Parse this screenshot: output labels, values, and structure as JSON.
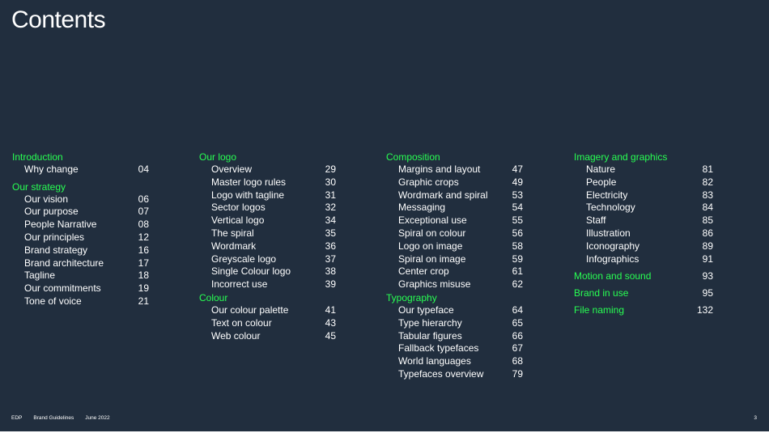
{
  "title": "Contents",
  "accent_color": "#28ff52",
  "background_color": "#212e3e",
  "columns": [
    {
      "sections": [
        {
          "heading": "Introduction",
          "items": [
            {
              "label": "Why change",
              "page": "04"
            }
          ]
        },
        {
          "heading": "Our strategy",
          "items": [
            {
              "label": "Our vision",
              "page": "06"
            },
            {
              "label": "Our purpose",
              "page": "07"
            },
            {
              "label": "People Narrative",
              "page": "08"
            },
            {
              "label": "Our principles",
              "page": "12"
            },
            {
              "label": "Brand strategy",
              "page": "16"
            },
            {
              "label": "Brand architecture",
              "page": "17"
            },
            {
              "label": "Tagline",
              "page": "18"
            },
            {
              "label": "Our commitments",
              "page": "19"
            },
            {
              "label": "Tone of voice",
              "page": "21"
            }
          ]
        }
      ]
    },
    {
      "sections": [
        {
          "heading": "Our logo",
          "items": [
            {
              "label": "Overview",
              "page": "29"
            },
            {
              "label": "Master logo rules",
              "page": "30"
            },
            {
              "label": "Logo with tagline",
              "page": "31"
            },
            {
              "label": "Sector logos",
              "page": "32"
            },
            {
              "label": "Vertical logo",
              "page": "34"
            },
            {
              "label": "The spiral",
              "page": "35"
            },
            {
              "label": "Wordmark",
              "page": "36"
            },
            {
              "label": "Greyscale logo",
              "page": "37"
            },
            {
              "label": "Single Colour logo",
              "page": "38"
            },
            {
              "label": "Incorrect use",
              "page": "39"
            }
          ]
        },
        {
          "heading": "Colour",
          "items": [
            {
              "label": "Our colour palette",
              "page": "41"
            },
            {
              "label": "Text on colour",
              "page": "43"
            },
            {
              "label": "Web colour",
              "page": "45"
            }
          ]
        }
      ]
    },
    {
      "sections": [
        {
          "heading": "Composition",
          "items": [
            {
              "label": "Margins and layout",
              "page": "47"
            },
            {
              "label": "Graphic crops",
              "page": "49"
            },
            {
              "label": "Wordmark and spiral",
              "page": "53"
            },
            {
              "label": "Messaging",
              "page": "54"
            },
            {
              "label": "Exceptional use",
              "page": "55"
            },
            {
              "label": "Spiral on colour",
              "page": "56"
            },
            {
              "label": "Logo on image",
              "page": "58"
            },
            {
              "label": "Spiral on image",
              "page": "59"
            },
            {
              "label": "Center crop",
              "page": "61"
            },
            {
              "label": "Graphics misuse",
              "page": "62"
            }
          ]
        },
        {
          "heading": "Typography",
          "items": [
            {
              "label": "Our typeface",
              "page": "64"
            },
            {
              "label": "Type hierarchy",
              "page": "65"
            },
            {
              "label": "Tabular figures",
              "page": "66"
            },
            {
              "label": "Fallback typefaces",
              "page": "67"
            },
            {
              "label": "World languages",
              "page": "68"
            },
            {
              "label": "Typefaces overview",
              "page": "79"
            }
          ]
        }
      ]
    },
    {
      "sections": [
        {
          "heading": "Imagery and graphics",
          "items": [
            {
              "label": "Nature",
              "page": "81"
            },
            {
              "label": "People",
              "page": "82"
            },
            {
              "label": "Electricity",
              "page": "83"
            },
            {
              "label": "Technology",
              "page": "84"
            },
            {
              "label": "Staff",
              "page": "85"
            },
            {
              "label": "Illustration",
              "page": "86"
            },
            {
              "label": "Iconography",
              "page": "89"
            },
            {
              "label": "Infographics",
              "page": "91"
            }
          ]
        }
      ],
      "links": [
        {
          "label": "Motion and sound",
          "page": "93"
        },
        {
          "label": "Brand in use",
          "page": "95"
        },
        {
          "label": "File naming",
          "page": "132"
        }
      ]
    }
  ],
  "footer": {
    "brand": "EDP",
    "doc": "Brand Guidelines",
    "date": "June 2022",
    "page_number": "3"
  }
}
